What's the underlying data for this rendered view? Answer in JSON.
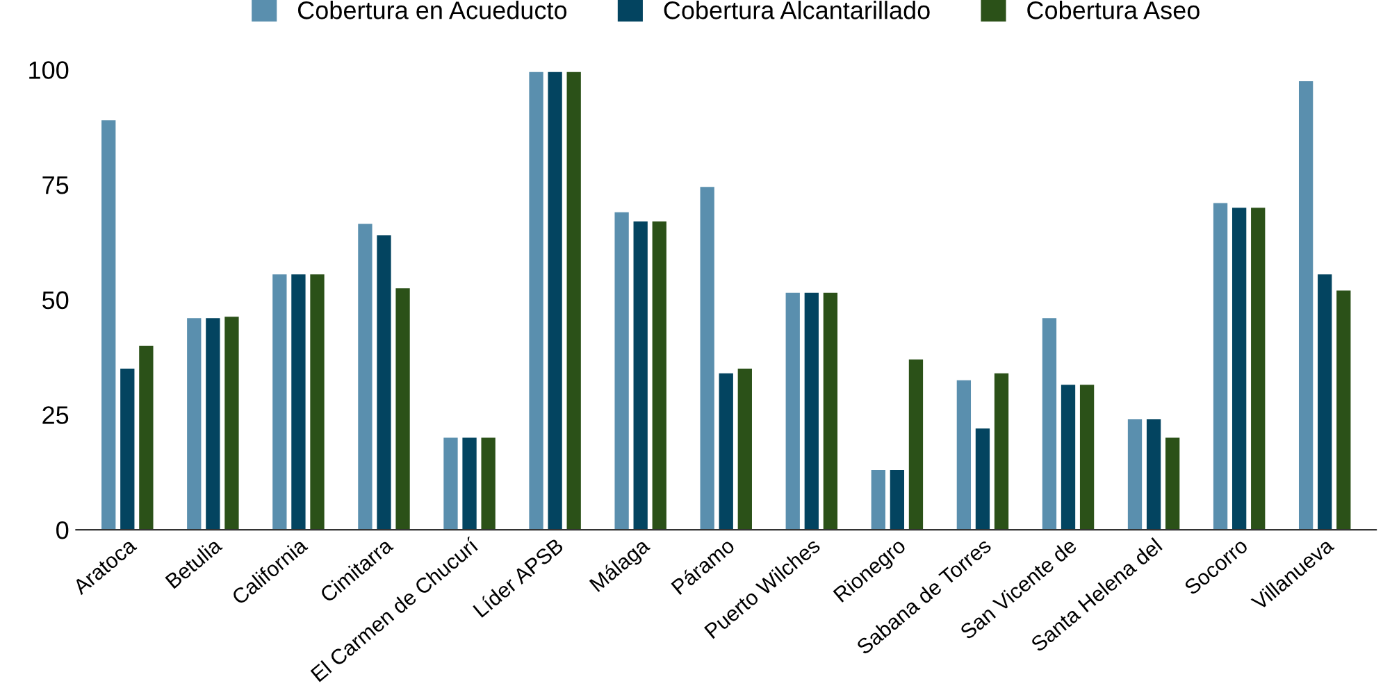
{
  "chart_data": {
    "type": "bar",
    "categories": [
      "Aratoca",
      "Betulia",
      "California",
      "Cimitarra",
      "El Carmen de Chucurí",
      "Líder APSB",
      "Málaga",
      "Páramo",
      "Puerto Wilches",
      "Rionegro",
      "Sabana de Torres",
      "San Vicente de",
      "Santa Helena del",
      "Socorro",
      "Villanueva"
    ],
    "series": [
      {
        "name": "Cobertura en Acueducto",
        "color": "#5a8fae",
        "values": [
          89,
          46,
          55.5,
          66.5,
          20,
          99.5,
          69,
          74.5,
          51.5,
          13,
          32.5,
          46,
          24,
          71,
          97.5
        ]
      },
      {
        "name": "Cobertura Alcantarillado",
        "color": "#034460",
        "values": [
          35,
          46,
          55.5,
          64,
          20,
          99.5,
          67,
          34,
          51.5,
          13,
          22,
          31.5,
          24,
          70,
          55.5
        ]
      },
      {
        "name": "Cobertura Aseo",
        "color": "#2b5118",
        "values": [
          40,
          46.3,
          55.5,
          52.5,
          20,
          99.5,
          67,
          35,
          51.5,
          37,
          34,
          31.5,
          20,
          70,
          52
        ]
      }
    ],
    "ylim": [
      0,
      100
    ],
    "yticks": [
      0,
      25,
      50,
      75,
      100
    ],
    "grid": false,
    "legend": "top"
  }
}
